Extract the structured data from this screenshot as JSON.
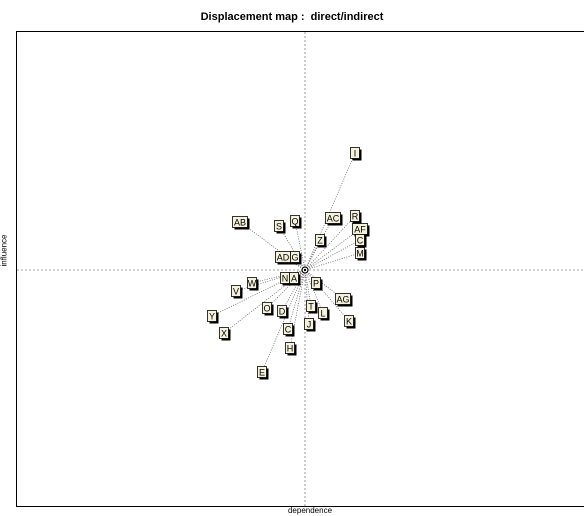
{
  "chart_data": {
    "type": "scatter",
    "title": "Displacement map :  direct/indirect",
    "xlabel": "dependence",
    "ylabel": "influence",
    "grid": false,
    "legend": "none",
    "xlim": [
      -305,
      295
    ],
    "ylim": [
      -245,
      245
    ],
    "center": [
      0,
      0
    ],
    "points": [
      {
        "label": "I",
        "x": 50,
        "y": 117
      },
      {
        "label": "AB",
        "x": -65,
        "y": 48
      },
      {
        "label": "S",
        "x": -26,
        "y": 44
      },
      {
        "label": "Q",
        "x": -10,
        "y": 49
      },
      {
        "label": "AC",
        "x": 28,
        "y": 52
      },
      {
        "label": "R",
        "x": 50,
        "y": 54
      },
      {
        "label": "AF",
        "x": 55,
        "y": 41
      },
      {
        "label": "Z",
        "x": 15,
        "y": 30
      },
      {
        "label": "C",
        "x": 55,
        "y": 30
      },
      {
        "label": "M",
        "x": 55,
        "y": 17
      },
      {
        "label": "AD",
        "x": -22,
        "y": 13
      },
      {
        "label": "G",
        "x": -10,
        "y": 13
      },
      {
        "label": "N",
        "x": -20,
        "y": -8
      },
      {
        "label": "A",
        "x": -11,
        "y": -8
      },
      {
        "label": "P",
        "x": 11,
        "y": -13
      },
      {
        "label": "W",
        "x": -53,
        "y": -13
      },
      {
        "label": "V",
        "x": -69,
        "y": -21
      },
      {
        "label": "AG",
        "x": 38,
        "y": -29
      },
      {
        "label": "T",
        "x": 6,
        "y": -36
      },
      {
        "label": "O",
        "x": -38,
        "y": -38
      },
      {
        "label": "D",
        "x": -23,
        "y": -41
      },
      {
        "label": "L",
        "x": 18,
        "y": -43
      },
      {
        "label": "Y",
        "x": -93,
        "y": -46
      },
      {
        "label": "K",
        "x": 44,
        "y": -51
      },
      {
        "label": "J",
        "x": 4,
        "y": -54
      },
      {
        "label": "X",
        "x": -81,
        "y": -63
      },
      {
        "label": "C",
        "x": -17,
        "y": -59
      },
      {
        "label": "H",
        "x": -15,
        "y": -78
      },
      {
        "label": "E",
        "x": -43,
        "y": -102
      }
    ]
  }
}
